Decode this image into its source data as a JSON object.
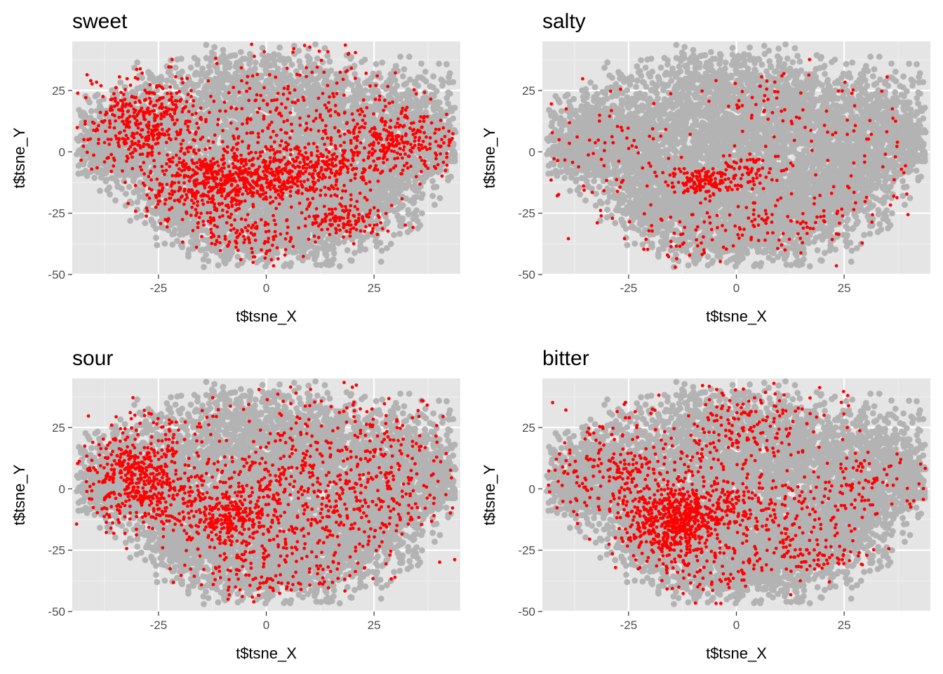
{
  "chart_data": [
    {
      "type": "scatter",
      "title": "sweet",
      "xlabel": "t$tsne_X",
      "ylabel": "t$tsne_Y",
      "xlim": [
        -45,
        45
      ],
      "ylim": [
        -50,
        45
      ],
      "x_ticks": [
        -25,
        0,
        25
      ],
      "x_tick_labels": [
        "-25",
        "0",
        "25"
      ],
      "y_ticks": [
        -50,
        -25,
        0,
        25
      ],
      "y_tick_labels": [
        "-50",
        "-25",
        "0",
        "25"
      ],
      "grid": true,
      "background_color": "#e5e5e5",
      "base_color": "#b3b3b3",
      "highlight_color": "#ff0000",
      "highlight_clusters": [
        {
          "x": -28,
          "y": 12,
          "sx": 7,
          "sy": 9,
          "n": 420
        },
        {
          "x": -14,
          "y": -14,
          "sx": 7,
          "sy": 8,
          "n": 380
        },
        {
          "x": -2,
          "y": -10,
          "sx": 9,
          "sy": 6,
          "n": 300
        },
        {
          "x": 10,
          "y": -8,
          "sx": 8,
          "sy": 6,
          "n": 220
        },
        {
          "x": 30,
          "y": 4,
          "sx": 7,
          "sy": 7,
          "n": 300
        },
        {
          "x": 18,
          "y": -28,
          "sx": 6,
          "sy": 4,
          "n": 130
        },
        {
          "x": 5,
          "y": 15,
          "sx": 12,
          "sy": 14,
          "n": 250
        },
        {
          "x": -2,
          "y": -35,
          "sx": 6,
          "sy": 5,
          "n": 100
        }
      ]
    },
    {
      "type": "scatter",
      "title": "salty",
      "xlabel": "t$tsne_X",
      "ylabel": "t$tsne_Y",
      "xlim": [
        -45,
        45
      ],
      "ylim": [
        -50,
        45
      ],
      "x_ticks": [
        -25,
        0,
        25
      ],
      "x_tick_labels": [
        "-25",
        "0",
        "25"
      ],
      "y_ticks": [
        -50,
        -25,
        0,
        25
      ],
      "y_tick_labels": [
        "-50",
        "-25",
        "0",
        "25"
      ],
      "grid": true,
      "background_color": "#e5e5e5",
      "base_color": "#b3b3b3",
      "highlight_color": "#ff0000",
      "highlight_clusters": [
        {
          "x": -8,
          "y": -12,
          "sx": 4,
          "sy": 3,
          "n": 140
        },
        {
          "x": 3,
          "y": -7,
          "sx": 4,
          "sy": 4,
          "n": 70
        },
        {
          "x": -30,
          "y": 0,
          "sx": 10,
          "sy": 14,
          "n": 80
        },
        {
          "x": 5,
          "y": 20,
          "sx": 6,
          "sy": 8,
          "n": 45
        },
        {
          "x": 28,
          "y": 5,
          "sx": 8,
          "sy": 12,
          "n": 60
        },
        {
          "x": 12,
          "y": -28,
          "sx": 10,
          "sy": 6,
          "n": 90
        },
        {
          "x": -10,
          "y": -35,
          "sx": 8,
          "sy": 6,
          "n": 50
        }
      ]
    },
    {
      "type": "scatter",
      "title": "sour",
      "xlabel": "t$tsne_X",
      "ylabel": "t$tsne_Y",
      "xlim": [
        -45,
        45
      ],
      "ylim": [
        -50,
        45
      ],
      "x_ticks": [
        -25,
        0,
        25
      ],
      "x_tick_labels": [
        "-25",
        "0",
        "25"
      ],
      "y_ticks": [
        -50,
        -25,
        0,
        25
      ],
      "y_tick_labels": [
        "-50",
        "-25",
        "0",
        "25"
      ],
      "grid": true,
      "background_color": "#e5e5e5",
      "base_color": "#b3b3b3",
      "highlight_color": "#ff0000",
      "highlight_clusters": [
        {
          "x": -29,
          "y": 5,
          "sx": 7,
          "sy": 11,
          "n": 520
        },
        {
          "x": -10,
          "y": -12,
          "sx": 6,
          "sy": 6,
          "n": 250
        },
        {
          "x": 5,
          "y": -5,
          "sx": 12,
          "sy": 10,
          "n": 280
        },
        {
          "x": 8,
          "y": 20,
          "sx": 14,
          "sy": 12,
          "n": 200
        },
        {
          "x": 0,
          "y": -32,
          "sx": 10,
          "sy": 7,
          "n": 160
        },
        {
          "x": 25,
          "y": -10,
          "sx": 8,
          "sy": 10,
          "n": 130
        },
        {
          "x": 33,
          "y": 12,
          "sx": 6,
          "sy": 10,
          "n": 70
        }
      ]
    },
    {
      "type": "scatter",
      "title": "bitter",
      "xlabel": "t$tsne_X",
      "ylabel": "t$tsne_Y",
      "xlim": [
        -45,
        45
      ],
      "ylim": [
        -50,
        45
      ],
      "x_ticks": [
        -25,
        0,
        25
      ],
      "x_tick_labels": [
        "-25",
        "0",
        "25"
      ],
      "y_ticks": [
        -50,
        -25,
        0,
        25
      ],
      "y_tick_labels": [
        "-50",
        "-25",
        "0",
        "25"
      ],
      "grid": true,
      "background_color": "#e5e5e5",
      "base_color": "#b3b3b3",
      "highlight_color": "#ff0000",
      "highlight_clusters": [
        {
          "x": -15,
          "y": -15,
          "sx": 6,
          "sy": 9,
          "n": 480
        },
        {
          "x": -7,
          "y": -8,
          "sx": 7,
          "sy": 6,
          "n": 250
        },
        {
          "x": -28,
          "y": 8,
          "sx": 8,
          "sy": 10,
          "n": 230
        },
        {
          "x": 2,
          "y": 25,
          "sx": 10,
          "sy": 10,
          "n": 200
        },
        {
          "x": 12,
          "y": -10,
          "sx": 10,
          "sy": 8,
          "n": 150
        },
        {
          "x": 30,
          "y": 3,
          "sx": 8,
          "sy": 6,
          "n": 80
        },
        {
          "x": 18,
          "y": -28,
          "sx": 8,
          "sy": 4,
          "n": 80
        },
        {
          "x": -5,
          "y": -35,
          "sx": 8,
          "sy": 6,
          "n": 70
        }
      ]
    }
  ]
}
